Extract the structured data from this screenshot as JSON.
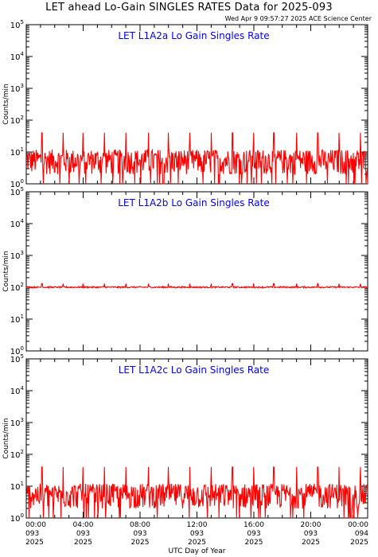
{
  "header": {
    "title": "LET ahead Lo-Gain SINGLES RATES Data for 2025-093",
    "timestamp": "Wed Apr  9 09:57:27 2025 ACE Science Center"
  },
  "colors": {
    "series": "#ff0000",
    "panel_label": "#0000ff",
    "axes": "#000000"
  },
  "chart_data": [
    {
      "type": "line",
      "title": "LET L1A2a Lo Gain Singles Rate",
      "ylabel": "Counts/min",
      "yscale": "log",
      "ylim": [
        1,
        100000
      ],
      "xlim": [
        0,
        24
      ],
      "x_unit": "hours",
      "series": [
        {
          "baseline": 6,
          "noise_low": 2,
          "noise_high": 12,
          "spikes": 40,
          "spike_hours": [
            1.1,
            2.6,
            4.0,
            5.5,
            7.0,
            8.6,
            10.0,
            11.5,
            13.0,
            14.5,
            16.0,
            17.4,
            19.0,
            20.5,
            22.0,
            23.5
          ]
        }
      ]
    },
    {
      "type": "line",
      "title": "LET L1A2b Lo Gain Singles Rate",
      "ylabel": "Counts/min",
      "yscale": "log",
      "ylim": [
        1,
        100000
      ],
      "xlim": [
        0,
        24
      ],
      "x_unit": "hours",
      "series": [
        {
          "baseline": 100,
          "noise_low": 95,
          "noise_high": 106,
          "spikes": 130,
          "spike_hours": [
            1.1,
            2.6,
            4.0,
            5.5,
            7.0,
            8.6,
            10.0,
            11.5,
            13.0,
            14.5,
            16.0,
            17.4,
            19.0,
            20.5,
            22.0,
            23.5
          ]
        }
      ]
    },
    {
      "type": "line",
      "title": "LET L1A2c Lo Gain Singles Rate",
      "ylabel": "Counts/min",
      "yscale": "log",
      "ylim": [
        1,
        100000
      ],
      "xlim": [
        0,
        24
      ],
      "x_unit": "hours",
      "series": [
        {
          "baseline": 6,
          "noise_low": 2,
          "noise_high": 12,
          "spikes": 40,
          "spike_hours": [
            1.1,
            2.6,
            4.0,
            5.5,
            7.0,
            8.6,
            10.0,
            11.5,
            13.0,
            14.5,
            16.0,
            17.4,
            19.0,
            20.5,
            22.0,
            23.5
          ]
        }
      ]
    }
  ],
  "y_tick_labels": [
    "10^0",
    "10^1",
    "10^2",
    "10^3",
    "10^4",
    "10^5"
  ],
  "x_ticks": [
    {
      "hour": 0,
      "time": "00:00",
      "doy": "093",
      "year": "2025"
    },
    {
      "hour": 4,
      "time": "04:00",
      "doy": "093",
      "year": "2025"
    },
    {
      "hour": 8,
      "time": "08:00",
      "doy": "093",
      "year": "2025"
    },
    {
      "hour": 12,
      "time": "12:00",
      "doy": "093",
      "year": "2025"
    },
    {
      "hour": 16,
      "time": "16:00",
      "doy": "093",
      "year": "2025"
    },
    {
      "hour": 20,
      "time": "20:00",
      "doy": "093",
      "year": "2025"
    },
    {
      "hour": 24,
      "time": "00:00",
      "doy": "094",
      "year": "2025"
    }
  ],
  "xlabel": "UTC Day of Year"
}
